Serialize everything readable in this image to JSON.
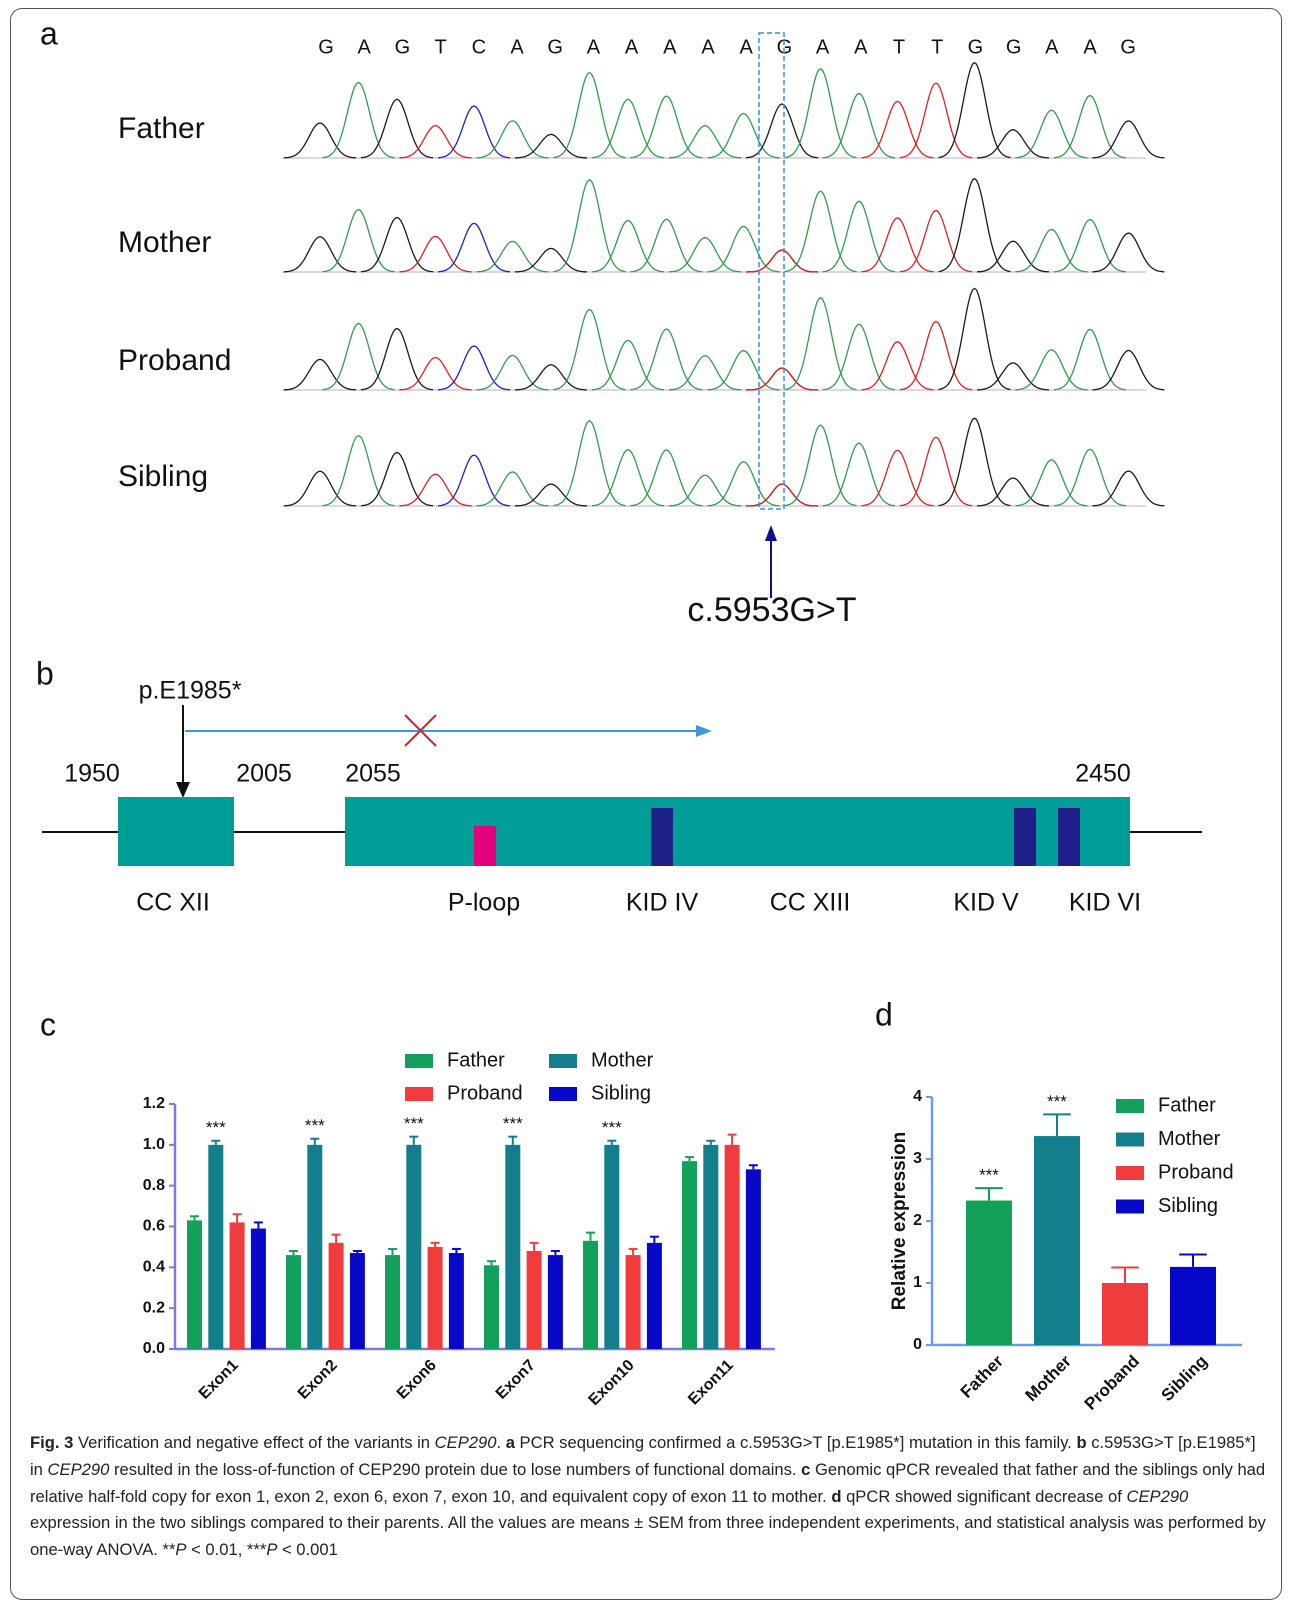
{
  "panel_a": {
    "label": "a",
    "bases": [
      "G",
      "A",
      "G",
      "T",
      "C",
      "A",
      "G",
      "A",
      "A",
      "A",
      "A",
      "A",
      "G",
      "A",
      "A",
      "T",
      "T",
      "G",
      "G",
      "A",
      "A",
      "G"
    ],
    "rows": [
      "Father",
      "Mother",
      "Proband",
      "Sibling"
    ],
    "mutation": "c.5953G>T"
  },
  "panel_b": {
    "label": "b",
    "variant": "p.E1985*",
    "positions": [
      "1950",
      "2005",
      "2055",
      "2450"
    ],
    "domains": [
      "CC XII",
      "P-loop",
      "KID IV",
      "CC XIII",
      "KID V",
      "KID VI"
    ]
  },
  "chart_data": [
    {
      "type": "bar",
      "label": "c",
      "categories": [
        "Exon1",
        "Exon2",
        "Exon6",
        "Exon7",
        "Exon10",
        "Exon11"
      ],
      "series": [
        {
          "name": "Father",
          "color": "#13a05a",
          "values": [
            0.63,
            0.46,
            0.46,
            0.41,
            0.53,
            0.92
          ],
          "errors": [
            0.02,
            0.02,
            0.03,
            0.02,
            0.04,
            0.02
          ]
        },
        {
          "name": "Mother",
          "color": "#137e8c",
          "values": [
            1.0,
            1.0,
            1.0,
            1.0,
            1.0,
            1.0
          ],
          "errors": [
            0.02,
            0.03,
            0.04,
            0.04,
            0.02,
            0.02
          ],
          "significance": [
            "***",
            "***",
            "***",
            "***",
            "***",
            null
          ]
        },
        {
          "name": "Proband",
          "color": "#f03c3c",
          "values": [
            0.62,
            0.52,
            0.5,
            0.48,
            0.46,
            1.0
          ],
          "errors": [
            0.04,
            0.04,
            0.02,
            0.04,
            0.03,
            0.05
          ]
        },
        {
          "name": "Sibling",
          "color": "#0808c8",
          "values": [
            0.59,
            0.47,
            0.47,
            0.46,
            0.52,
            0.88
          ],
          "errors": [
            0.03,
            0.01,
            0.02,
            0.02,
            0.03,
            0.02
          ]
        }
      ],
      "ylim": [
        0,
        1.2
      ],
      "yticks": [
        {
          "value": 0,
          "label": "0.0"
        },
        0.2,
        0.4,
        0.6,
        0.8,
        {
          "value": 1,
          "label": "1.0"
        },
        1.2
      ]
    },
    {
      "type": "bar",
      "label": "d",
      "ylabel": "Relative expression",
      "categories": [
        "Father",
        "Mother",
        "Proband",
        "Sibling"
      ],
      "values": [
        2.33,
        3.37,
        1.0,
        1.26
      ],
      "errors": [
        0.2,
        0.35,
        0.25,
        0.2
      ],
      "colors": [
        "#13a05a",
        "#137e8c",
        "#f03c3c",
        "#0808c8"
      ],
      "significance": [
        "***",
        "***",
        null,
        null
      ],
      "ylim": [
        0,
        4
      ],
      "yticks": [
        0,
        1,
        2,
        3,
        4
      ]
    }
  ],
  "caption": {
    "runs": [
      {
        "text": "Fig. 3",
        "style": "bold"
      },
      {
        "text": " Verification and negative effect of the variants in ",
        "style": "plain"
      },
      {
        "text": "CEP290",
        "style": "italic"
      },
      {
        "text": ". ",
        "style": "plain"
      },
      {
        "text": "a",
        "style": "bold"
      },
      {
        "text": " PCR sequencing confirmed a c.5953G>T [p.E1985*] mutation in this family. ",
        "style": "plain"
      },
      {
        "text": "b",
        "style": "bold"
      },
      {
        "text": " c.5953G>T [p.E1985*] in ",
        "style": "plain"
      },
      {
        "text": "CEP290",
        "style": "italic"
      },
      {
        "text": " resulted in the loss-of-function of CEP290 protein due to lose numbers of functional domains. ",
        "style": "plain"
      },
      {
        "text": "c",
        "style": "bold"
      },
      {
        "text": " Genomic qPCR revealed that father and the siblings only had relative half-fold copy for exon 1, exon 2, exon 6, exon 7, exon 10, and equivalent copy of exon 11 to mother. ",
        "style": "plain"
      },
      {
        "text": "d",
        "style": "bold"
      },
      {
        "text": " qPCR showed significant decrease of ",
        "style": "plain"
      },
      {
        "text": "CEP290",
        "style": "italic"
      },
      {
        "text": " expression in the two siblings compared to their parents. All the values are means ± SEM from three independent experiments, and statistical analysis was performed by one-way ANOVA. **",
        "style": "plain"
      },
      {
        "text": "P",
        "style": "italic"
      },
      {
        "text": " < 0.01, ***",
        "style": "plain"
      },
      {
        "text": "P",
        "style": "italic"
      },
      {
        "text": " < 0.001",
        "style": "plain"
      }
    ]
  }
}
